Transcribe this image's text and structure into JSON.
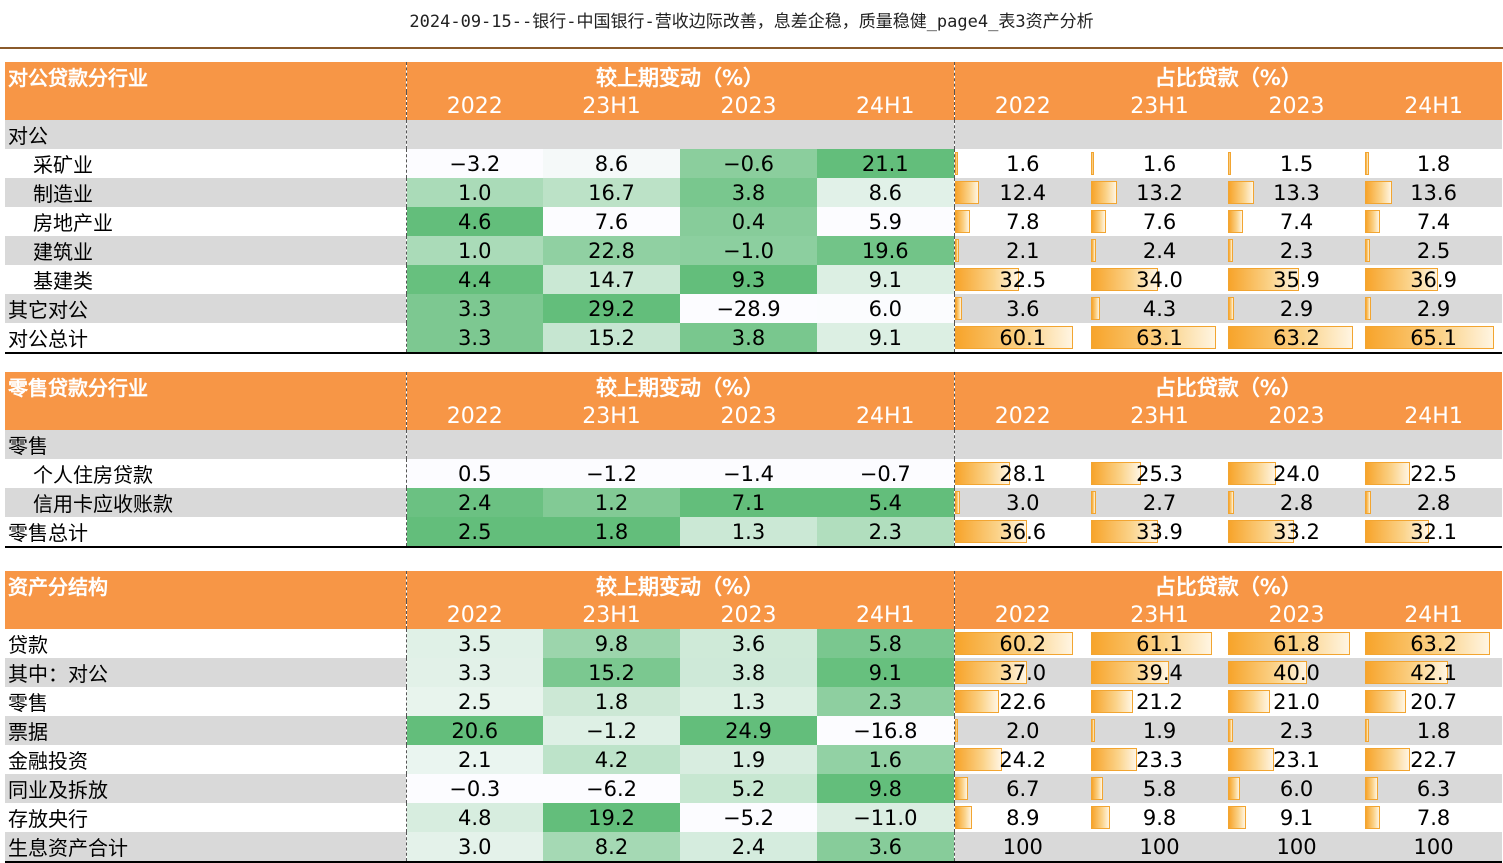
{
  "title": "2024-09-15--银行-中国银行-营收边际改善，息差企稳，质量稳健_page4_表3资产分析",
  "headers": {
    "change_group": "较上期变动（%）",
    "share_group": "占比贷款（%）",
    "years": [
      "2022",
      "23H1",
      "2023",
      "24H1"
    ]
  },
  "colors": {
    "header": "#f79646",
    "gray_row": "#d9d9d9",
    "green_max": "#63be7b",
    "bar": "#f7a42b"
  },
  "sections": [
    {
      "title": "对公贷款分行业",
      "rows": [
        {
          "label": "对公",
          "kind": "sub"
        },
        {
          "label": "采矿业",
          "indent": true,
          "changes": [
            "−3.2",
            "8.6",
            "−0.6",
            "21.1"
          ],
          "shares": [
            "1.6",
            "1.6",
            "1.5",
            "1.8"
          ]
        },
        {
          "label": "制造业",
          "indent": true,
          "changes": [
            "1.0",
            "16.7",
            "3.8",
            "8.6"
          ],
          "shares": [
            "12.4",
            "13.2",
            "13.3",
            "13.6"
          ]
        },
        {
          "label": "房地产业",
          "indent": true,
          "changes": [
            "4.6",
            "7.6",
            "0.4",
            "5.9"
          ],
          "shares": [
            "7.8",
            "7.6",
            "7.4",
            "7.4"
          ]
        },
        {
          "label": "建筑业",
          "indent": true,
          "changes": [
            "1.0",
            "22.8",
            "−1.0",
            "19.6"
          ],
          "shares": [
            "2.1",
            "2.4",
            "2.3",
            "2.5"
          ]
        },
        {
          "label": "基建类",
          "indent": true,
          "changes": [
            "4.4",
            "14.7",
            "9.3",
            "9.1"
          ],
          "shares": [
            "32.5",
            "34.0",
            "35.9",
            "36.9"
          ]
        },
        {
          "label": "其它对公",
          "changes": [
            "3.3",
            "29.2",
            "−28.9",
            "6.0"
          ],
          "shares": [
            "3.6",
            "4.3",
            "2.9",
            "2.9"
          ]
        },
        {
          "label": "对公总计",
          "total": true,
          "changes": [
            "3.3",
            "15.2",
            "3.8",
            "9.1"
          ],
          "shares": [
            "60.1",
            "63.1",
            "63.2",
            "65.1"
          ]
        }
      ]
    },
    {
      "title": "零售贷款分行业",
      "rows": [
        {
          "label": "零售",
          "kind": "sub"
        },
        {
          "label": "个人住房贷款",
          "indent": true,
          "changes": [
            "0.5",
            "−1.2",
            "−1.4",
            "−0.7"
          ],
          "shares": [
            "28.1",
            "25.3",
            "24.0",
            "22.5"
          ]
        },
        {
          "label": "信用卡应收账款",
          "indent": true,
          "changes": [
            "2.4",
            "1.2",
            "7.1",
            "5.4"
          ],
          "shares": [
            "3.0",
            "2.7",
            "2.8",
            "2.8"
          ]
        },
        {
          "label": "零售总计",
          "total": true,
          "changes": [
            "2.5",
            "1.8",
            "1.3",
            "2.3"
          ],
          "shares": [
            "36.6",
            "33.9",
            "33.2",
            "32.1"
          ]
        }
      ]
    },
    {
      "title": "资产分结构",
      "rows": [
        {
          "label": "贷款",
          "changes": [
            "3.5",
            "9.8",
            "3.6",
            "5.8"
          ],
          "shares": [
            "60.2",
            "61.1",
            "61.8",
            "63.2"
          ]
        },
        {
          "label": "其中：对公",
          "changes": [
            "3.3",
            "15.2",
            "3.8",
            "9.1"
          ],
          "shares": [
            "37.0",
            "39.4",
            "40.0",
            "42.1"
          ]
        },
        {
          "label": "零售",
          "changes": [
            "2.5",
            "1.8",
            "1.3",
            "2.3"
          ],
          "shares": [
            "22.6",
            "21.2",
            "21.0",
            "20.7"
          ]
        },
        {
          "label": "票据",
          "changes": [
            "20.6",
            "−1.2",
            "24.9",
            "−16.8"
          ],
          "shares": [
            "2.0",
            "1.9",
            "2.3",
            "1.8"
          ]
        },
        {
          "label": "金融投资",
          "changes": [
            "2.1",
            "4.2",
            "1.9",
            "1.6"
          ],
          "shares": [
            "24.2",
            "23.3",
            "23.1",
            "22.7"
          ]
        },
        {
          "label": "同业及拆放",
          "changes": [
            "−0.3",
            "−6.2",
            "5.2",
            "9.8"
          ],
          "shares": [
            "6.7",
            "5.8",
            "6.0",
            "6.3"
          ]
        },
        {
          "label": "存放央行",
          "changes": [
            "4.8",
            "19.2",
            "−5.2",
            "−11.0"
          ],
          "shares": [
            "8.9",
            "9.8",
            "9.1",
            "7.8"
          ]
        },
        {
          "label": "生息资产合计",
          "total": true,
          "nobar": true,
          "changes": [
            "3.0",
            "8.2",
            "2.4",
            "3.6"
          ],
          "shares": [
            "100",
            "100",
            "100",
            "100"
          ]
        }
      ]
    }
  ]
}
